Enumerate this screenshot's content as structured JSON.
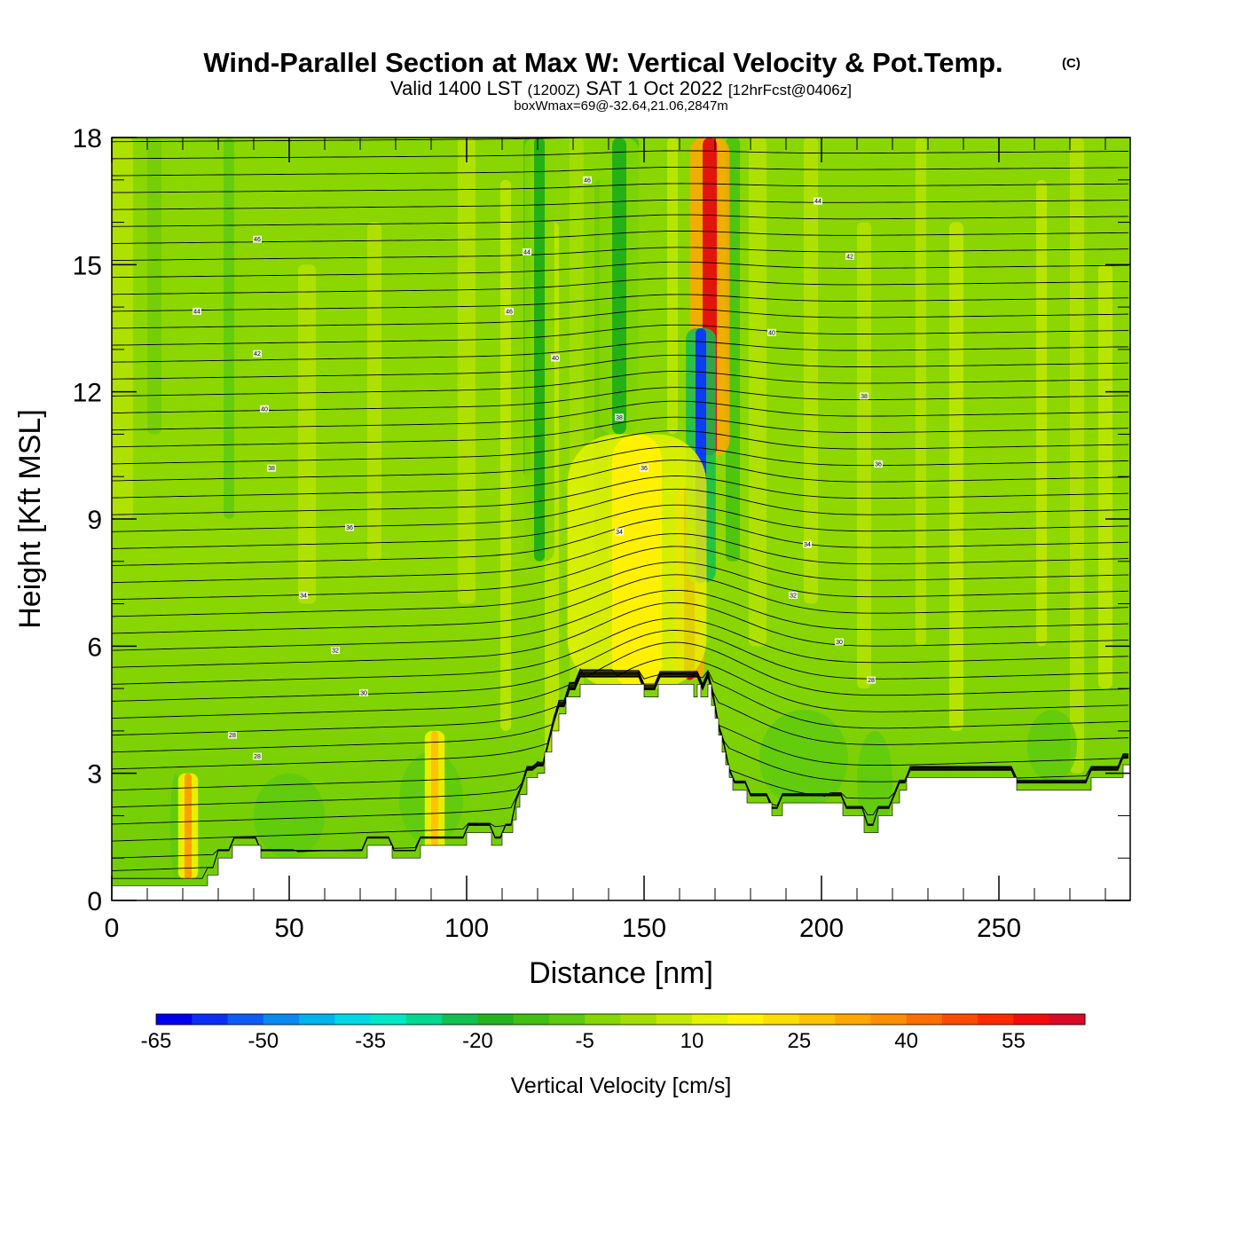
{
  "title": {
    "main": "Wind-Parallel Section at Max W: Vertical Velocity & Pot.Temp.",
    "copyright": "(C)",
    "valid_prefix": "Valid 1400 LST",
    "valid_z": "(1200Z)",
    "valid_date": "SAT 1 Oct 2022",
    "forecast": "[12hrFcst@0406z]",
    "boxwmax": "boxWmax=69@-32.64,21.06,2847m"
  },
  "chart_data": {
    "type": "heatmap",
    "xlabel": "Distance [nm]",
    "ylabel": "Height [Kft MSL]",
    "xlim": [
      0,
      287
    ],
    "ylim": [
      0,
      18
    ],
    "x_ticks": [
      0,
      50,
      100,
      150,
      200,
      250
    ],
    "x_tick_labels": [
      "0",
      "50",
      "100",
      "150",
      "200",
      "250"
    ],
    "y_ticks": [
      0,
      3,
      6,
      9,
      12,
      15,
      18
    ],
    "y_tick_labels": [
      "0",
      "3",
      "6",
      "9",
      "12",
      "15",
      "18"
    ],
    "background_value": -3,
    "features": [
      {
        "name": "updraft-upper",
        "x_center": 168.5,
        "width": 4,
        "y_range": [
          10.5,
          18
        ],
        "value": 58,
        "color": "#e2150e"
      },
      {
        "name": "updraft-lower",
        "x_center": 162.8,
        "width": 3,
        "y_range": [
          5.2,
          9.8
        ],
        "value": 52,
        "color": "#e01010"
      },
      {
        "name": "downdraft-core",
        "x_center": 166,
        "width": 3,
        "y_range": [
          7.5,
          13.5
        ],
        "value": -55,
        "color": "#0a3ef0"
      },
      {
        "name": "sinking-band-120",
        "x_center": 120.5,
        "width": 3,
        "y_range": [
          8,
          18
        ],
        "value": -18,
        "color": "#23b115"
      },
      {
        "name": "sinking-band-143",
        "x_center": 143,
        "width": 4,
        "y_range": [
          11,
          18
        ],
        "value": -18,
        "color": "#23b115"
      },
      {
        "name": "rising-band-150",
        "x_center": 148,
        "width": 14,
        "y_range": [
          5,
          11
        ],
        "value": 12,
        "color": "#fff100"
      },
      {
        "name": "rising-band-20",
        "x_center": 21.5,
        "width": 2,
        "y_range": [
          0.5,
          3
        ],
        "value": 28,
        "color": "#ffa100"
      },
      {
        "name": "rising-band-90",
        "x_center": 91,
        "width": 2,
        "y_range": [
          1,
          4
        ],
        "value": 22,
        "color": "#ffc400"
      }
    ],
    "terrain_top_kft": [
      [
        0,
        0.35
      ],
      [
        26,
        0.35
      ],
      [
        27,
        0.6
      ],
      [
        29,
        0.6
      ],
      [
        30,
        1.0
      ],
      [
        33,
        1.0
      ],
      [
        34,
        1.3
      ],
      [
        41,
        1.3
      ],
      [
        42,
        1.0
      ],
      [
        71,
        1.0
      ],
      [
        72,
        1.3
      ],
      [
        78,
        1.3
      ],
      [
        79,
        1.0
      ],
      [
        86,
        1.0
      ],
      [
        87,
        1.3
      ],
      [
        92,
        1.3
      ],
      [
        93,
        1.3
      ],
      [
        99,
        1.3
      ],
      [
        100,
        1.6
      ],
      [
        106,
        1.6
      ],
      [
        107,
        1.3
      ],
      [
        109,
        1.3
      ],
      [
        110,
        1.6
      ],
      [
        113,
        1.9
      ],
      [
        114,
        2.2
      ],
      [
        115,
        2.5
      ],
      [
        117,
        2.9
      ],
      [
        120,
        3.0
      ],
      [
        122,
        3.5
      ],
      [
        124,
        4.0
      ],
      [
        126,
        4.4
      ],
      [
        128,
        4.8
      ],
      [
        132,
        5.1
      ],
      [
        149,
        5.1
      ],
      [
        150,
        4.8
      ],
      [
        153,
        4.8
      ],
      [
        154,
        5.1
      ],
      [
        163,
        5.1
      ],
      [
        164,
        4.8
      ],
      [
        165,
        5.1
      ],
      [
        166,
        4.8
      ],
      [
        168,
        5.1
      ],
      [
        169,
        4.6
      ],
      [
        170,
        4.3
      ],
      [
        171,
        3.9
      ],
      [
        172,
        3.5
      ],
      [
        173,
        3.2
      ],
      [
        174,
        2.9
      ],
      [
        175,
        2.6
      ],
      [
        178,
        2.6
      ],
      [
        179,
        2.3
      ],
      [
        185,
        2.3
      ],
      [
        186,
        2.0
      ],
      [
        188,
        2.0
      ],
      [
        189,
        2.3
      ],
      [
        205,
        2.3
      ],
      [
        206,
        2.0
      ],
      [
        211,
        2.0
      ],
      [
        212,
        1.6
      ],
      [
        215,
        1.6
      ],
      [
        216,
        2.0
      ],
      [
        219,
        2.0
      ],
      [
        220,
        2.3
      ],
      [
        222,
        2.6
      ],
      [
        224,
        2.9
      ],
      [
        254,
        2.9
      ],
      [
        255,
        2.6
      ],
      [
        275,
        2.6
      ],
      [
        276,
        2.9
      ],
      [
        284,
        2.9
      ],
      [
        285,
        3.2
      ],
      [
        287,
        3.2
      ]
    ],
    "theta_contours": [
      {
        "base": 0.4,
        "ridge": 0.3
      },
      {
        "base": 0.7,
        "ridge": 0.5
      },
      {
        "base": 1.0,
        "ridge": 0.8
      },
      {
        "base": 1.4,
        "ridge": 1.0
      },
      {
        "base": 1.8,
        "ridge": 1.2
      },
      {
        "base": 2.2,
        "ridge": 1.4
      },
      {
        "base": 2.6,
        "ridge": 1.5
      },
      {
        "base": 3.1,
        "ridge": 1.6
      },
      {
        "base": 3.5,
        "ridge": 1.7
      },
      {
        "base": 3.9,
        "ridge": 1.7
      },
      {
        "base": 4.3,
        "ridge": 1.7
      },
      {
        "base": 4.7,
        "ridge": 1.6
      },
      {
        "base": 5.1,
        "ridge": 1.5
      },
      {
        "base": 5.5,
        "ridge": 1.5
      },
      {
        "base": 5.9,
        "ridge": 1.4
      },
      {
        "base": 6.3,
        "ridge": 1.4
      },
      {
        "base": 6.7,
        "ridge": 1.3
      },
      {
        "base": 7.1,
        "ridge": 1.3
      },
      {
        "base": 7.5,
        "ridge": 1.2
      },
      {
        "base": 7.9,
        "ridge": 1.2
      },
      {
        "base": 8.3,
        "ridge": 1.1
      },
      {
        "base": 8.7,
        "ridge": 1.1
      },
      {
        "base": 9.1,
        "ridge": 1.0
      },
      {
        "base": 9.5,
        "ridge": 1.0
      },
      {
        "base": 9.9,
        "ridge": 0.9
      },
      {
        "base": 10.3,
        "ridge": 0.9
      },
      {
        "base": 10.7,
        "ridge": 0.8
      },
      {
        "base": 11.1,
        "ridge": 0.8
      },
      {
        "base": 11.5,
        "ridge": 0.7
      },
      {
        "base": 11.9,
        "ridge": 0.7
      },
      {
        "base": 12.3,
        "ridge": 0.7
      },
      {
        "base": 12.7,
        "ridge": 0.6
      },
      {
        "base": 13.1,
        "ridge": 0.6
      },
      {
        "base": 13.5,
        "ridge": 0.6
      },
      {
        "base": 13.9,
        "ridge": 0.5
      },
      {
        "base": 14.3,
        "ridge": 0.5
      },
      {
        "base": 14.7,
        "ridge": 0.5
      },
      {
        "base": 15.1,
        "ridge": 0.4
      },
      {
        "base": 15.5,
        "ridge": 0.4
      },
      {
        "base": 15.9,
        "ridge": 0.4
      },
      {
        "base": 16.3,
        "ridge": 0.3
      },
      {
        "base": 16.7,
        "ridge": 0.3
      },
      {
        "base": 17.1,
        "ridge": 0.3
      },
      {
        "base": 17.5,
        "ridge": 0.3
      },
      {
        "base": 17.9,
        "ridge": 0.2
      }
    ],
    "contour_labels": [
      {
        "text": "28",
        "x": 34,
        "y": 3.9
      },
      {
        "text": "28",
        "x": 41,
        "y": 3.4
      },
      {
        "text": "30",
        "x": 71,
        "y": 4.9
      },
      {
        "text": "32",
        "x": 63,
        "y": 5.9
      },
      {
        "text": "34",
        "x": 54,
        "y": 7.2
      },
      {
        "text": "36",
        "x": 67,
        "y": 8.8
      },
      {
        "text": "38",
        "x": 45,
        "y": 10.2
      },
      {
        "text": "40",
        "x": 43,
        "y": 11.6
      },
      {
        "text": "42",
        "x": 41,
        "y": 12.9
      },
      {
        "text": "44",
        "x": 24,
        "y": 13.9
      },
      {
        "text": "46",
        "x": 41,
        "y": 15.6
      },
      {
        "text": "46",
        "x": 112,
        "y": 13.9
      },
      {
        "text": "44",
        "x": 117,
        "y": 15.3
      },
      {
        "text": "46",
        "x": 134,
        "y": 17.0
      },
      {
        "text": "40",
        "x": 125,
        "y": 12.8
      },
      {
        "text": "38",
        "x": 143,
        "y": 11.4
      },
      {
        "text": "36",
        "x": 150,
        "y": 10.2
      },
      {
        "text": "34",
        "x": 143,
        "y": 8.7
      },
      {
        "text": "44",
        "x": 199,
        "y": 16.5
      },
      {
        "text": "42",
        "x": 208,
        "y": 15.2
      },
      {
        "text": "40",
        "x": 186,
        "y": 13.4
      },
      {
        "text": "38",
        "x": 212,
        "y": 11.9
      },
      {
        "text": "36",
        "x": 216,
        "y": 10.3
      },
      {
        "text": "34",
        "x": 196,
        "y": 8.4
      },
      {
        "text": "32",
        "x": 192,
        "y": 7.2
      },
      {
        "text": "30",
        "x": 205,
        "y": 6.1
      },
      {
        "text": "28",
        "x": 214,
        "y": 5.2
      }
    ],
    "colorbar": {
      "levels": [
        -70,
        -65,
        -60,
        -55,
        -50,
        -45,
        -40,
        -35,
        -30,
        -25,
        -20,
        -15,
        -10,
        -5,
        0,
        5,
        10,
        15,
        20,
        25,
        30,
        35,
        40,
        45,
        50,
        55,
        60
      ],
      "colors": [
        "#0000f0",
        "#0a2ff7",
        "#0c5cf5",
        "#0a8aef",
        "#00b2ee",
        "#00d8e8",
        "#00e8c8",
        "#00d890",
        "#12c050",
        "#21b420",
        "#3fc012",
        "#5bca10",
        "#86d600",
        "#a5de00",
        "#c3e800",
        "#e3f200",
        "#fff300",
        "#ffdd00",
        "#ffc400",
        "#ffa800",
        "#ff8f00",
        "#ff6e00",
        "#ff4c00",
        "#ff2a00",
        "#f30c0c",
        "#d90a28"
      ],
      "tick_labels": [
        "-65",
        "-50",
        "-35",
        "-20",
        "-5",
        "10",
        "25",
        "40",
        "55"
      ],
      "label": "Vertical Velocity [cm/s]"
    }
  }
}
